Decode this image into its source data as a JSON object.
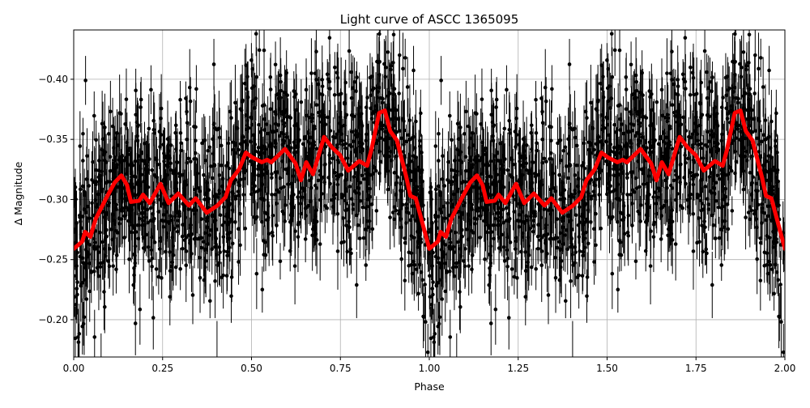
{
  "chart_data": {
    "type": "scatter",
    "title": "Light curve of ASCC 1365095",
    "xlabel": "Phase",
    "ylabel": "Δ Magnitude",
    "xlim": [
      0,
      2
    ],
    "ylim": [
      -0.441,
      -0.169
    ],
    "y_inverted": true,
    "grid": true,
    "xticks": [
      "0.00",
      "0.25",
      "0.50",
      "0.75",
      "1.00",
      "1.25",
      "1.50",
      "1.75",
      "2.00"
    ],
    "xtick_values": [
      0,
      0.25,
      0.5,
      0.75,
      1.0,
      1.25,
      1.5,
      1.75,
      2.0
    ],
    "yticks": [
      "−0.40",
      "−0.35",
      "−0.30",
      "−0.25",
      "−0.20"
    ],
    "ytick_values": [
      -0.4,
      -0.35,
      -0.3,
      -0.25,
      -0.2
    ],
    "scatter_color": "#000000",
    "curve_color": "#ff0000",
    "series": [
      {
        "kind": "line",
        "phase": [
          0.0,
          0.024,
          0.032,
          0.047,
          0.062,
          0.093,
          0.115,
          0.134,
          0.15,
          0.161,
          0.184,
          0.195,
          0.214,
          0.244,
          0.267,
          0.294,
          0.324,
          0.343,
          0.374,
          0.404,
          0.427,
          0.442,
          0.465,
          0.484,
          0.502,
          0.529,
          0.544,
          0.556,
          0.594,
          0.624,
          0.639,
          0.654,
          0.673,
          0.704,
          0.727,
          0.749,
          0.772,
          0.803,
          0.825,
          0.837,
          0.859,
          0.875,
          0.89,
          0.909,
          0.935,
          0.947,
          0.962,
          1.0
        ],
        "magnitude": [
          -0.259,
          -0.265,
          -0.273,
          -0.269,
          -0.284,
          -0.302,
          -0.314,
          -0.32,
          -0.312,
          -0.298,
          -0.299,
          -0.304,
          -0.297,
          -0.313,
          -0.297,
          -0.305,
          -0.295,
          -0.301,
          -0.289,
          -0.295,
          -0.302,
          -0.316,
          -0.325,
          -0.339,
          -0.335,
          -0.331,
          -0.333,
          -0.331,
          -0.342,
          -0.33,
          -0.316,
          -0.331,
          -0.321,
          -0.352,
          -0.343,
          -0.337,
          -0.324,
          -0.332,
          -0.328,
          -0.341,
          -0.372,
          -0.374,
          -0.357,
          -0.349,
          -0.319,
          -0.303,
          -0.301,
          -0.259
        ],
        "repeats_every_phase": 1
      }
    ]
  }
}
